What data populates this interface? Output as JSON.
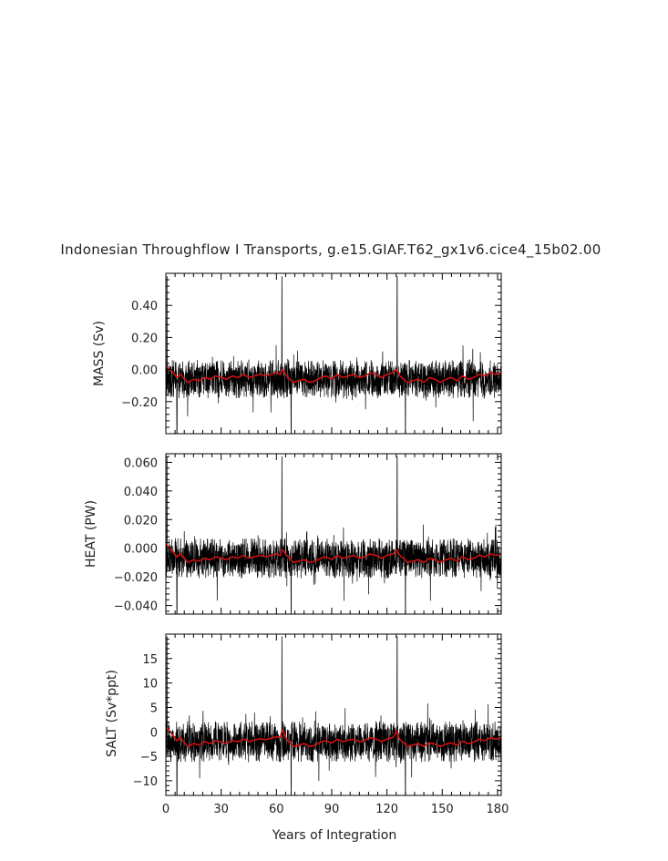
{
  "title": "Indonesian Throughflow I Transports, g.e15.GIAF.T62_gx1v6.cice4_15b02.00",
  "xlabel": "Years of Integration",
  "colors": {
    "monthly_series": "#000000",
    "annual_mean_series": "#d11010",
    "axes": "#000000",
    "text": "#222222"
  },
  "chart_data": [
    {
      "type": "line",
      "ylabel": "MASS (Sv)",
      "xlim": [
        0,
        182
      ],
      "ylim": [
        -0.4,
        0.6
      ],
      "xticks": [
        0,
        30,
        60,
        90,
        120,
        150,
        180
      ],
      "yticks": [
        -0.2,
        0.0,
        0.2,
        0.4
      ],
      "ytick_labels": [
        "−0.20",
        "0.00",
        "0.20",
        "0.40"
      ],
      "grid": false,
      "monthly_stats": {
        "baseline": -0.06,
        "amplitude": 0.12,
        "spikes": [
          [
            0.6,
            0.58
          ],
          [
            63.0,
            0.58
          ],
          [
            125.5,
            0.58
          ]
        ],
        "dips": [
          [
            6.0,
            -0.4
          ],
          [
            68.0,
            -0.4
          ],
          [
            130.0,
            -0.4
          ]
        ]
      },
      "series": [
        {
          "kind": "annual_mean",
          "x": [
            0,
            2,
            4,
            6,
            8,
            10,
            12,
            15,
            18,
            21,
            24,
            27,
            30,
            33,
            36,
            39,
            42,
            45,
            48,
            51,
            54,
            57,
            60,
            62,
            63,
            64,
            65,
            67,
            69,
            72,
            75,
            78,
            81,
            84,
            87,
            90,
            93,
            96,
            99,
            102,
            105,
            108,
            111,
            114,
            117,
            120,
            123,
            124,
            125,
            126,
            127,
            129,
            131,
            134,
            137,
            140,
            143,
            146,
            149,
            152,
            155,
            158,
            161,
            164,
            167,
            170,
            173,
            176,
            179,
            182
          ],
          "y": [
            0.02,
            0.0,
            -0.02,
            -0.05,
            -0.03,
            -0.06,
            -0.08,
            -0.06,
            -0.07,
            -0.05,
            -0.06,
            -0.04,
            -0.05,
            -0.06,
            -0.04,
            -0.05,
            -0.03,
            -0.05,
            -0.04,
            -0.03,
            -0.04,
            -0.03,
            -0.02,
            -0.03,
            0.0,
            -0.01,
            -0.03,
            -0.06,
            -0.08,
            -0.07,
            -0.06,
            -0.08,
            -0.07,
            -0.05,
            -0.04,
            -0.06,
            -0.03,
            -0.05,
            -0.04,
            -0.03,
            -0.05,
            -0.04,
            -0.02,
            -0.03,
            -0.05,
            -0.03,
            -0.02,
            -0.01,
            0.0,
            -0.02,
            -0.04,
            -0.06,
            -0.08,
            -0.07,
            -0.06,
            -0.08,
            -0.05,
            -0.06,
            -0.08,
            -0.06,
            -0.05,
            -0.07,
            -0.04,
            -0.06,
            -0.05,
            -0.03,
            -0.04,
            -0.02,
            -0.03,
            -0.02
          ]
        }
      ]
    },
    {
      "type": "line",
      "ylabel": "HEAT (PW)",
      "xlim": [
        0,
        182
      ],
      "ylim": [
        -0.046,
        0.066
      ],
      "xticks": [
        0,
        30,
        60,
        90,
        120,
        150,
        180
      ],
      "yticks": [
        -0.04,
        -0.02,
        0.0,
        0.02,
        0.04,
        0.06
      ],
      "ytick_labels": [
        "−0.040",
        "−0.020",
        "0.000",
        "0.020",
        "0.040",
        "0.060"
      ],
      "grid": false,
      "monthly_stats": {
        "baseline": -0.007,
        "amplitude": 0.014,
        "spikes": [
          [
            0.6,
            0.064
          ],
          [
            63.0,
            0.064
          ],
          [
            125.5,
            0.064
          ]
        ],
        "dips": [
          [
            6.0,
            -0.046
          ],
          [
            68.0,
            -0.046
          ],
          [
            130.0,
            -0.046
          ]
        ]
      },
      "series": [
        {
          "kind": "annual_mean",
          "x": [
            0,
            2,
            4,
            6,
            8,
            10,
            12,
            15,
            18,
            21,
            24,
            27,
            30,
            33,
            36,
            39,
            42,
            45,
            48,
            51,
            54,
            57,
            60,
            62,
            63,
            64,
            65,
            67,
            69,
            72,
            75,
            78,
            81,
            84,
            87,
            90,
            93,
            96,
            99,
            102,
            105,
            108,
            111,
            114,
            117,
            120,
            123,
            124,
            125,
            126,
            127,
            129,
            131,
            134,
            137,
            140,
            143,
            146,
            149,
            152,
            155,
            158,
            161,
            164,
            167,
            170,
            173,
            176,
            179,
            182
          ],
          "y": [
            0.003,
            0.0,
            -0.003,
            -0.006,
            -0.004,
            -0.007,
            -0.01,
            -0.008,
            -0.009,
            -0.007,
            -0.008,
            -0.006,
            -0.007,
            -0.008,
            -0.006,
            -0.007,
            -0.005,
            -0.007,
            -0.006,
            -0.005,
            -0.006,
            -0.005,
            -0.004,
            -0.005,
            -0.001,
            -0.002,
            -0.004,
            -0.007,
            -0.01,
            -0.009,
            -0.008,
            -0.01,
            -0.009,
            -0.007,
            -0.006,
            -0.008,
            -0.005,
            -0.007,
            -0.006,
            -0.005,
            -0.007,
            -0.006,
            -0.004,
            -0.005,
            -0.007,
            -0.005,
            -0.004,
            -0.003,
            -0.001,
            -0.003,
            -0.005,
            -0.007,
            -0.01,
            -0.009,
            -0.008,
            -0.01,
            -0.007,
            -0.008,
            -0.01,
            -0.008,
            -0.007,
            -0.009,
            -0.006,
            -0.008,
            -0.007,
            -0.005,
            -0.006,
            -0.004,
            -0.005,
            -0.004
          ]
        }
      ]
    },
    {
      "type": "line",
      "ylabel": "SALT (Sv*ppt)",
      "xlim": [
        0,
        182
      ],
      "ylim": [
        -13,
        20
      ],
      "xticks": [
        0,
        30,
        60,
        90,
        120,
        150,
        180
      ],
      "xtick_labels": [
        "0",
        "30",
        "60",
        "90",
        "120",
        "150",
        "180"
      ],
      "yticks": [
        -10,
        -5,
        0,
        5,
        10,
        15
      ],
      "ytick_labels": [
        "−10",
        "−5",
        "0",
        "5",
        "10",
        "15"
      ],
      "grid": false,
      "monthly_stats": {
        "baseline": -2.0,
        "amplitude": 4.2,
        "spikes": [
          [
            0.6,
            19.5
          ],
          [
            63.0,
            19.5
          ],
          [
            125.5,
            19.5
          ]
        ],
        "dips": [
          [
            6.0,
            -13
          ],
          [
            68.0,
            -13
          ],
          [
            130.0,
            -13
          ]
        ]
      },
      "series": [
        {
          "kind": "annual_mean",
          "x": [
            0,
            2,
            4,
            6,
            8,
            10,
            12,
            15,
            18,
            21,
            24,
            27,
            30,
            33,
            36,
            39,
            42,
            45,
            48,
            51,
            54,
            57,
            60,
            62,
            63,
            64,
            65,
            67,
            69,
            72,
            75,
            78,
            81,
            84,
            87,
            90,
            93,
            96,
            99,
            102,
            105,
            108,
            111,
            114,
            117,
            120,
            123,
            124,
            125,
            126,
            127,
            129,
            131,
            134,
            137,
            140,
            143,
            146,
            149,
            152,
            155,
            158,
            161,
            164,
            167,
            170,
            173,
            176,
            179,
            182
          ],
          "y": [
            1.0,
            0.2,
            -0.8,
            -1.8,
            -1.2,
            -2.2,
            -3.0,
            -2.4,
            -2.7,
            -2.0,
            -2.4,
            -1.8,
            -2.1,
            -2.4,
            -1.8,
            -2.0,
            -1.5,
            -2.0,
            -1.7,
            -1.4,
            -1.6,
            -1.3,
            -1.0,
            -1.2,
            0.3,
            -0.2,
            -1.2,
            -2.2,
            -3.0,
            -2.7,
            -2.4,
            -3.0,
            -2.7,
            -2.1,
            -1.8,
            -2.3,
            -1.5,
            -2.0,
            -1.7,
            -1.5,
            -2.0,
            -1.7,
            -1.2,
            -1.5,
            -2.0,
            -1.5,
            -1.2,
            -0.8,
            0.2,
            -0.8,
            -1.6,
            -2.2,
            -3.0,
            -2.7,
            -2.4,
            -3.0,
            -2.2,
            -2.5,
            -3.0,
            -2.5,
            -2.2,
            -2.7,
            -1.9,
            -2.4,
            -2.1,
            -1.5,
            -1.8,
            -1.2,
            -1.5,
            -1.2
          ]
        }
      ]
    }
  ]
}
